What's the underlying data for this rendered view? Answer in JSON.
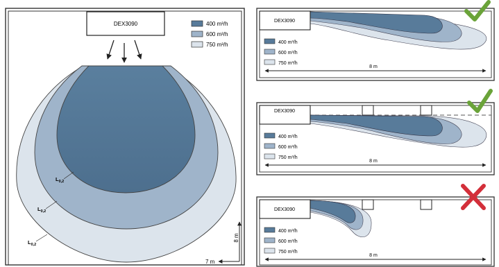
{
  "device_label": "DEX3090",
  "legend": {
    "items": [
      {
        "label": "400 m³/h",
        "color": "#587b9a"
      },
      {
        "label": "600 m³/h",
        "color": "#9fb4ca"
      },
      {
        "label": "750 m³/h",
        "color": "#dce4ec"
      }
    ]
  },
  "left_panel": {
    "isoline_labels": [
      "L0,2",
      "L0,2",
      "L0,2"
    ],
    "dim_width": "7 m",
    "dim_depth": "8 m"
  },
  "right_panels": [
    {
      "dimension_label": "8 m",
      "verdict": "check-icon",
      "verdict_color": "#6aa339"
    },
    {
      "dimension_label": "8 m",
      "verdict": "check-icon",
      "verdict_color": "#6aa339"
    },
    {
      "dimension_label": "8 m",
      "verdict": "cross-icon",
      "verdict_color": "#d32f3a"
    }
  ],
  "colors": {
    "dark": "#587b9a",
    "mid": "#9fb4ca",
    "light": "#dce4ec",
    "stroke": "#333333"
  }
}
